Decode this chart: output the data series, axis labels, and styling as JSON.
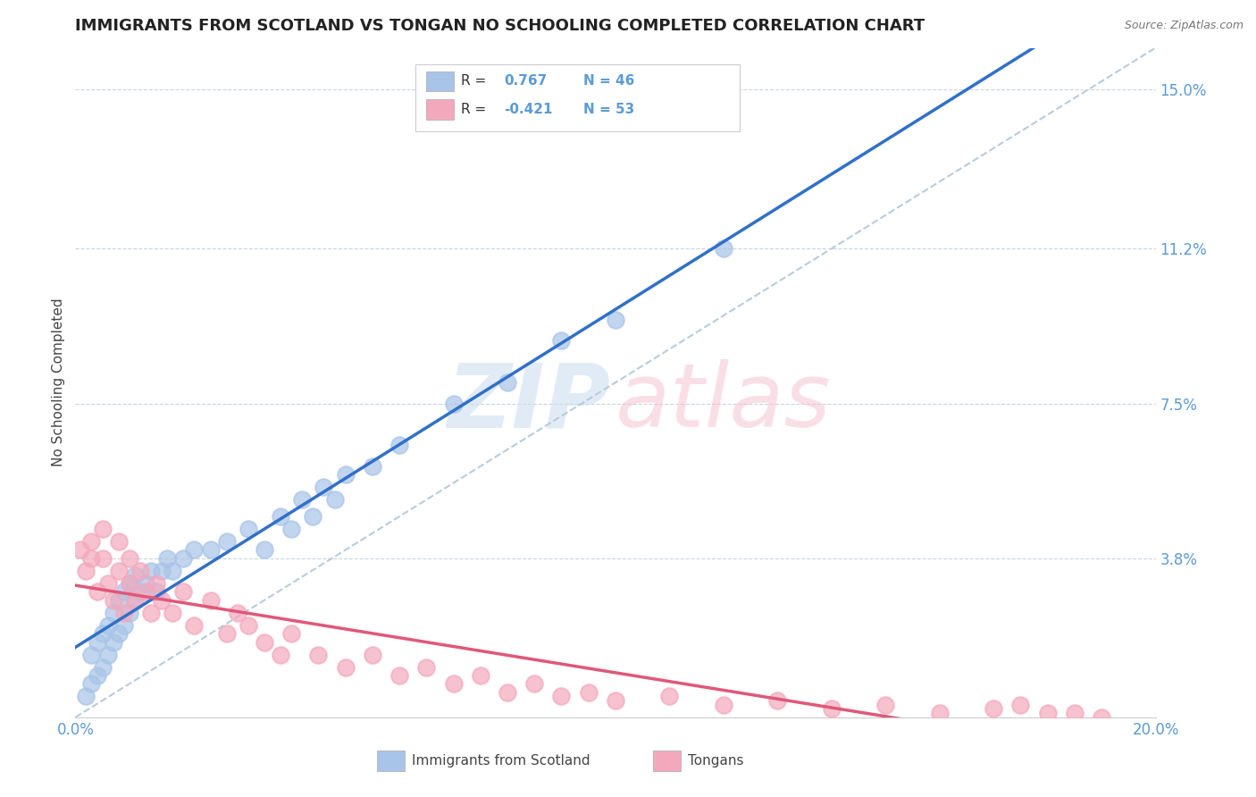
{
  "title": "IMMIGRANTS FROM SCOTLAND VS TONGAN NO SCHOOLING COMPLETED CORRELATION CHART",
  "source": "Source: ZipAtlas.com",
  "ylabel_label": "No Schooling Completed",
  "x_min": 0.0,
  "x_max": 0.2,
  "y_min": 0.0,
  "y_max": 0.16,
  "y_ticks": [
    0.038,
    0.075,
    0.112,
    0.15
  ],
  "y_tick_labels": [
    "3.8%",
    "7.5%",
    "11.2%",
    "15.0%"
  ],
  "x_tick_labels": [
    "0.0%",
    "20.0%"
  ],
  "legend1_r": "0.767",
  "legend1_n": "46",
  "legend2_r": "-0.421",
  "legend2_n": "53",
  "scotland_color": "#a8c4e8",
  "tongan_color": "#f4a8bc",
  "scotland_line_color": "#3070c8",
  "tongan_line_color": "#e05878",
  "trendline_dash_color": "#b8ccdd",
  "title_color": "#222222",
  "tick_label_color": "#5b9bd5",
  "scotland_scatter_x": [
    0.002,
    0.003,
    0.003,
    0.004,
    0.004,
    0.005,
    0.005,
    0.006,
    0.006,
    0.007,
    0.007,
    0.008,
    0.008,
    0.009,
    0.009,
    0.01,
    0.01,
    0.011,
    0.011,
    0.012,
    0.013,
    0.014,
    0.015,
    0.016,
    0.017,
    0.018,
    0.02,
    0.022,
    0.025,
    0.028,
    0.032,
    0.035,
    0.038,
    0.04,
    0.042,
    0.044,
    0.046,
    0.048,
    0.05,
    0.055,
    0.06,
    0.07,
    0.08,
    0.09,
    0.1,
    0.12
  ],
  "scotland_scatter_y": [
    0.005,
    0.008,
    0.015,
    0.01,
    0.018,
    0.012,
    0.02,
    0.015,
    0.022,
    0.018,
    0.025,
    0.02,
    0.028,
    0.022,
    0.03,
    0.025,
    0.032,
    0.028,
    0.034,
    0.03,
    0.032,
    0.035,
    0.03,
    0.035,
    0.038,
    0.035,
    0.038,
    0.04,
    0.04,
    0.042,
    0.045,
    0.04,
    0.048,
    0.045,
    0.052,
    0.048,
    0.055,
    0.052,
    0.058,
    0.06,
    0.065,
    0.075,
    0.08,
    0.09,
    0.095,
    0.112
  ],
  "tongan_scatter_x": [
    0.001,
    0.002,
    0.003,
    0.003,
    0.004,
    0.005,
    0.005,
    0.006,
    0.007,
    0.008,
    0.008,
    0.009,
    0.01,
    0.01,
    0.011,
    0.012,
    0.013,
    0.014,
    0.015,
    0.016,
    0.018,
    0.02,
    0.022,
    0.025,
    0.028,
    0.03,
    0.032,
    0.035,
    0.038,
    0.04,
    0.045,
    0.05,
    0.055,
    0.06,
    0.065,
    0.07,
    0.075,
    0.08,
    0.085,
    0.09,
    0.095,
    0.1,
    0.11,
    0.12,
    0.13,
    0.14,
    0.15,
    0.16,
    0.17,
    0.175,
    0.18,
    0.185,
    0.19
  ],
  "tongan_scatter_y": [
    0.04,
    0.035,
    0.038,
    0.042,
    0.03,
    0.038,
    0.045,
    0.032,
    0.028,
    0.035,
    0.042,
    0.025,
    0.032,
    0.038,
    0.028,
    0.035,
    0.03,
    0.025,
    0.032,
    0.028,
    0.025,
    0.03,
    0.022,
    0.028,
    0.02,
    0.025,
    0.022,
    0.018,
    0.015,
    0.02,
    0.015,
    0.012,
    0.015,
    0.01,
    0.012,
    0.008,
    0.01,
    0.006,
    0.008,
    0.005,
    0.006,
    0.004,
    0.005,
    0.003,
    0.004,
    0.002,
    0.003,
    0.001,
    0.002,
    0.003,
    0.001,
    0.001,
    0.0
  ]
}
